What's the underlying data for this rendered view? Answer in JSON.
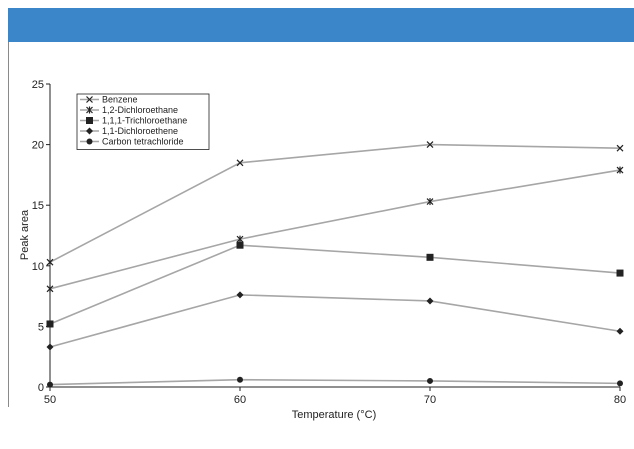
{
  "chart_data": {
    "type": "line",
    "xlabel": "Temperature (°C)",
    "ylabel": "Peak area",
    "x": [
      50,
      60,
      70,
      80
    ],
    "xlim": [
      50,
      80
    ],
    "ylim": [
      0,
      25
    ],
    "xticks": [
      "50",
      "60",
      "70",
      "80"
    ],
    "yticks": [
      "0",
      "5",
      "10",
      "15",
      "20",
      "25"
    ],
    "grid": false,
    "legend_position": "top-left",
    "line_color": "#a6a6a6",
    "marker_color": "#222222",
    "series": [
      {
        "name": "Benzene",
        "marker": "x",
        "values": [
          10.3,
          18.5,
          20.0,
          19.7
        ]
      },
      {
        "name": "1,2-Dichloroethane",
        "marker": "star",
        "values": [
          8.1,
          12.2,
          15.3,
          17.9
        ]
      },
      {
        "name": "1,1,1-Trichloroethane",
        "marker": "square",
        "values": [
          5.2,
          11.7,
          10.7,
          9.4
        ]
      },
      {
        "name": "1,1-Dichloroethene",
        "marker": "diamond",
        "values": [
          3.3,
          7.6,
          7.1,
          4.6
        ]
      },
      {
        "name": "Carbon tetrachloride",
        "marker": "circle",
        "values": [
          0.2,
          0.6,
          0.5,
          0.3
        ]
      }
    ]
  },
  "header": {
    "band_color": "#3a86c8"
  }
}
